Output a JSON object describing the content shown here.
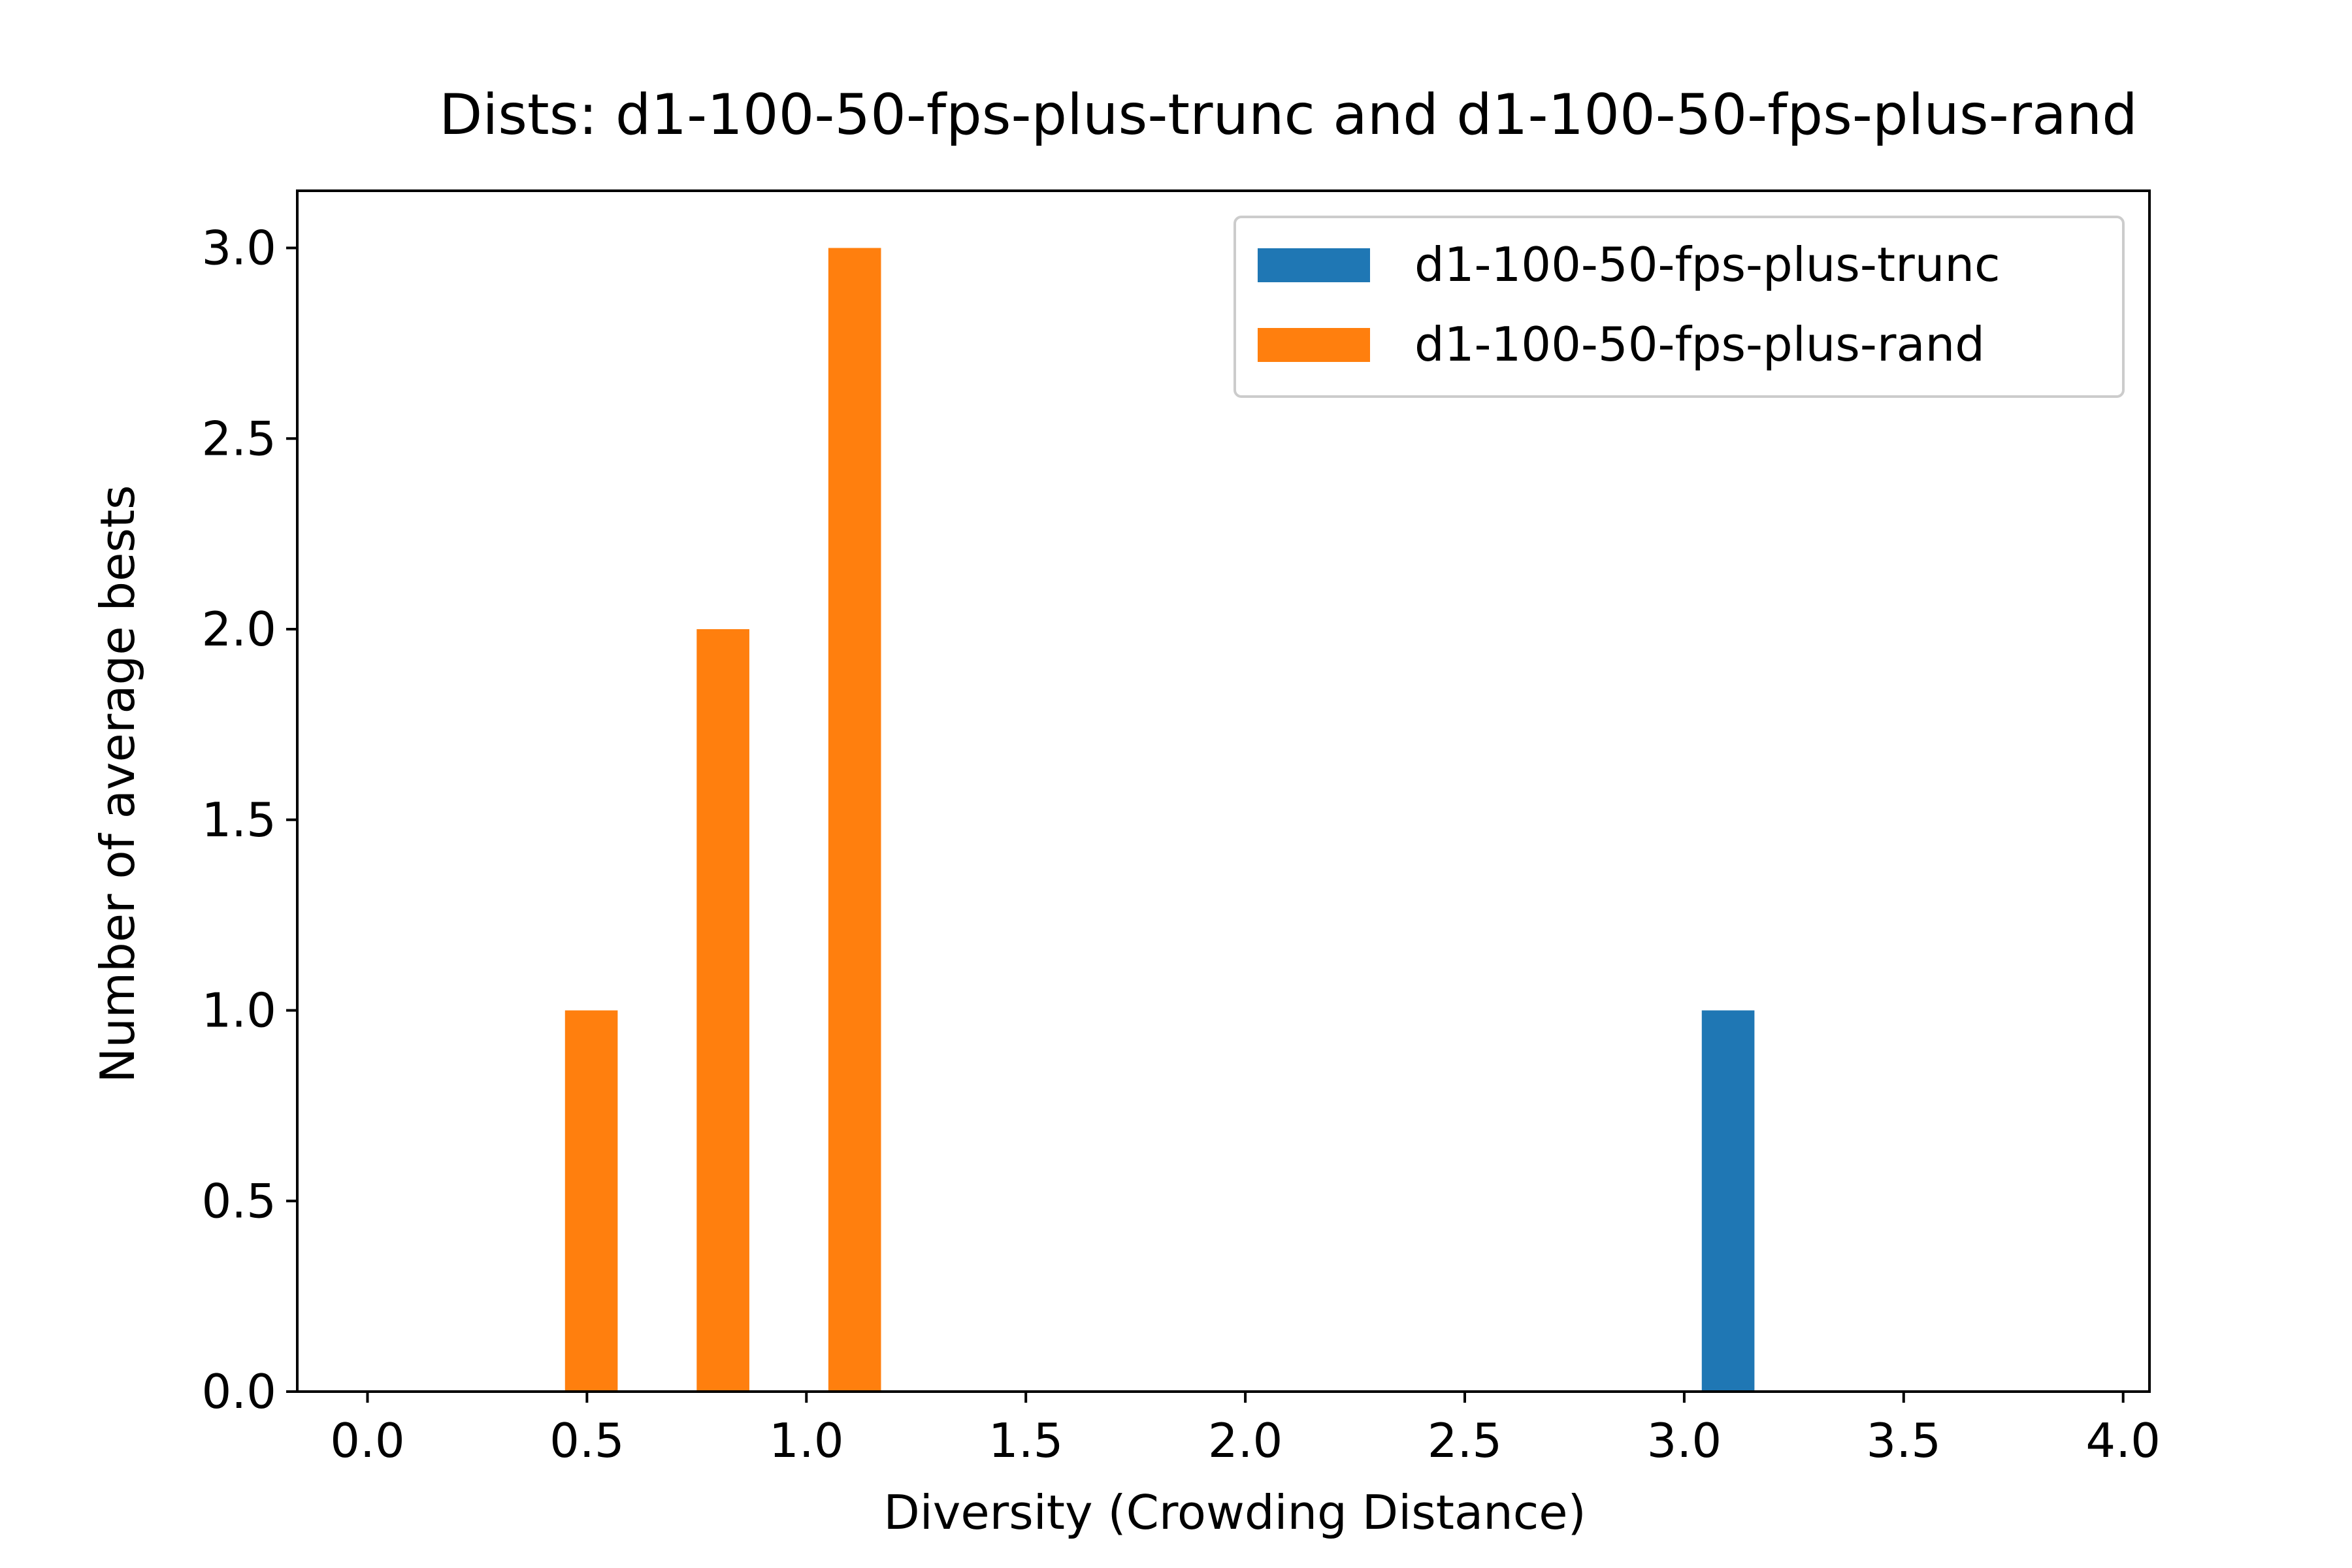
{
  "chart_data": {
    "type": "bar",
    "title": "Dists: d1-100-50-fps-plus-trunc and d1-100-50-fps-plus-rand",
    "xlabel": "Diversity (Crowding Distance)",
    "ylabel": "Number of average bests",
    "xlim": [
      -0.16,
      4.06
    ],
    "ylim": [
      0,
      3.15
    ],
    "xticks": [
      "0.0",
      "0.5",
      "1.0",
      "1.5",
      "2.0",
      "2.5",
      "3.0",
      "3.5",
      "4.0"
    ],
    "yticks": [
      "0.0",
      "0.5",
      "1.0",
      "1.5",
      "2.0",
      "2.5",
      "3.0"
    ],
    "bar_width": 0.12,
    "grid": false,
    "legend_position": "upper right",
    "series": [
      {
        "name": "d1-100-50-fps-plus-trunc",
        "color": "#1f77b4",
        "x": [
          3.1
        ],
        "values": [
          1
        ]
      },
      {
        "name": "d1-100-50-fps-plus-rand",
        "color": "#ff7f0e",
        "x": [
          0.51,
          0.81,
          1.11
        ],
        "values": [
          1,
          2,
          3
        ]
      }
    ]
  }
}
